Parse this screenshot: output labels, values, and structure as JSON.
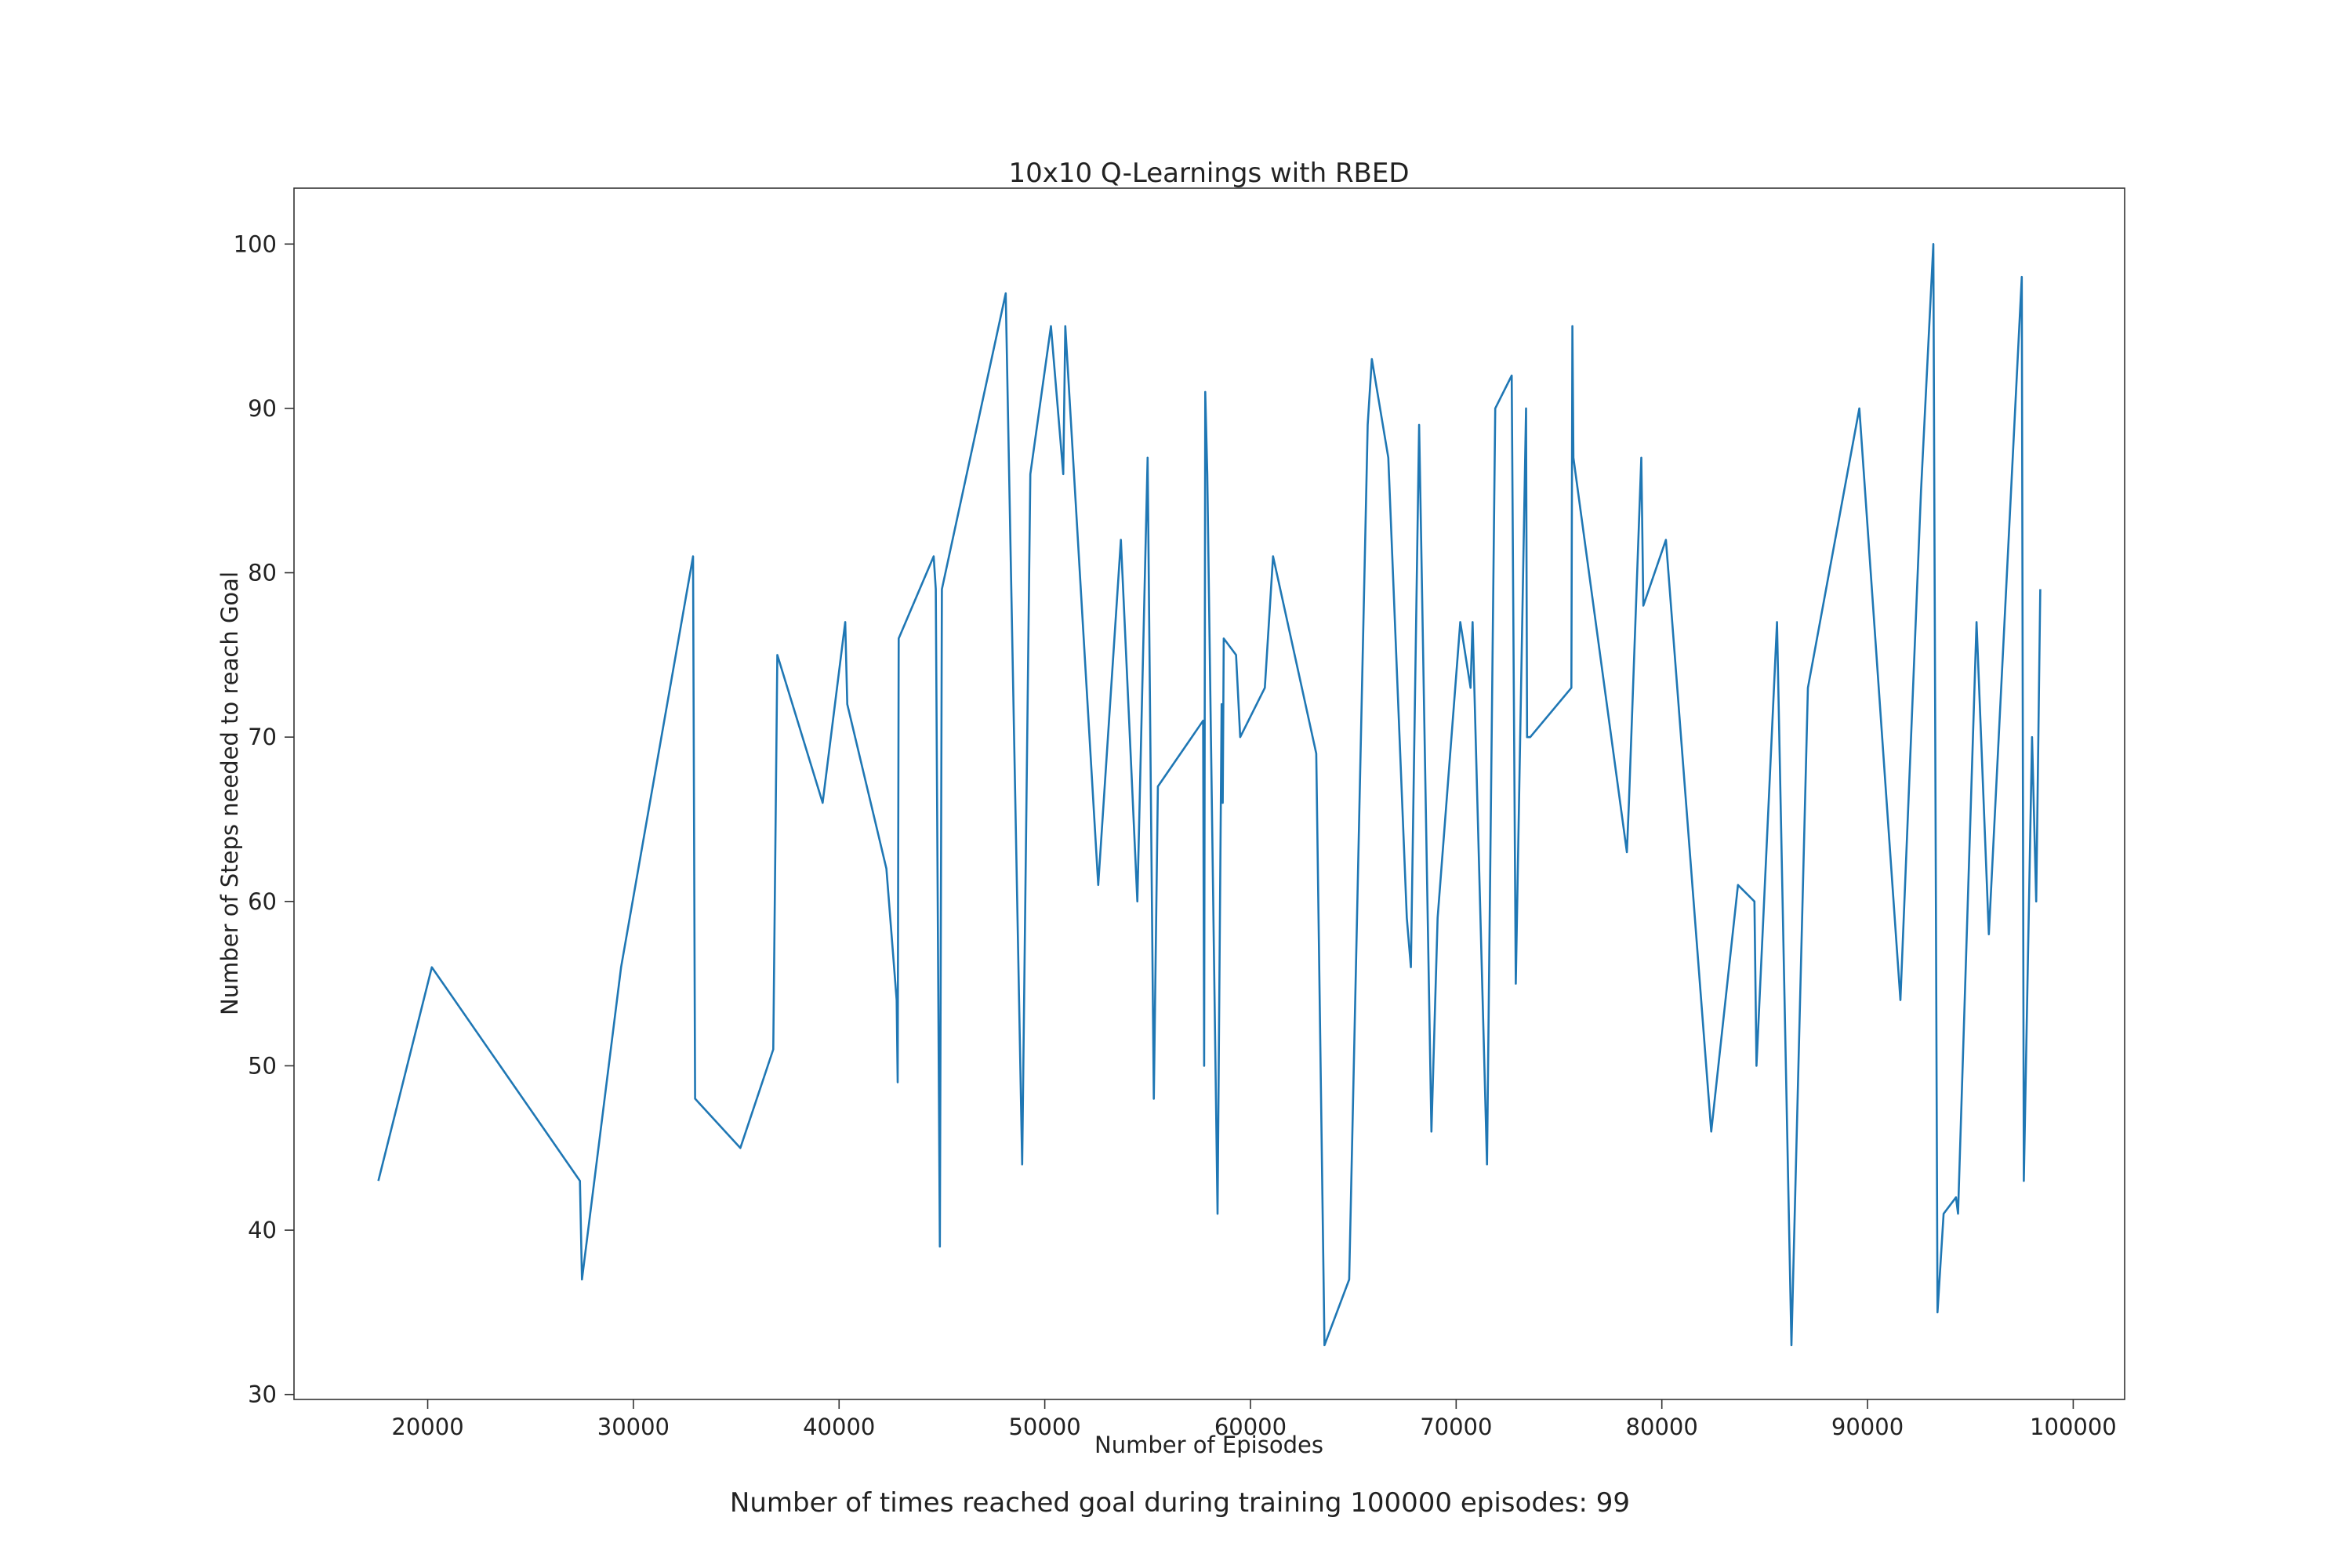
{
  "chart_data": {
    "type": "line",
    "title": "10x10 Q-Learnings with RBED",
    "xlabel": "Number of Episodes",
    "ylabel": "Number of Steps needed to reach Goal",
    "xlim": [
      13500,
      102500
    ],
    "ylim": [
      29.7,
      103.4
    ],
    "xticks": [
      20000,
      30000,
      40000,
      50000,
      60000,
      70000,
      80000,
      90000,
      100000
    ],
    "yticks": [
      30,
      40,
      50,
      60,
      70,
      80,
      90,
      100
    ],
    "grid": false,
    "line_color": "#1f77b4",
    "series": [
      {
        "x": [
          17600,
          20200,
          27400,
          27500,
          29400,
          32900,
          33000,
          35200,
          36800,
          37000,
          39200,
          40300,
          40400,
          42300,
          42800,
          42850,
          42900,
          44600,
          44700,
          44900,
          45000,
          48100,
          48900,
          49300,
          50300,
          50900,
          51000,
          52600,
          53700,
          54500,
          55000,
          55300,
          55500,
          57700,
          57750,
          57800,
          57900,
          58400,
          58600,
          58650,
          58700,
          59300,
          59500,
          60700,
          61100,
          63200,
          63600,
          64800,
          65700,
          65900,
          66700,
          67600,
          67800,
          68200,
          68300,
          68800,
          69100,
          70200,
          70700,
          70800,
          71500,
          71900,
          72700,
          72900,
          73400,
          73450,
          73600,
          75600,
          75650,
          75700,
          78300,
          78400,
          79000,
          79100,
          80200,
          82400,
          83700,
          84500,
          84600,
          85600,
          86300,
          87100,
          89600,
          91600,
          92600,
          93200,
          93400,
          93700,
          94300,
          94400,
          95300,
          95900,
          97500,
          97600,
          98000,
          98200,
          98400
        ],
        "y": [
          43,
          56,
          43,
          37,
          56,
          81,
          48,
          45,
          51,
          75,
          66,
          77,
          72,
          62,
          54,
          49,
          76,
          81,
          79,
          39,
          79,
          97,
          44,
          86,
          95,
          86,
          95,
          61,
          82,
          60,
          87,
          48,
          67,
          71,
          50,
          91,
          86,
          41,
          72,
          66,
          76,
          75,
          70,
          73,
          81,
          69,
          33,
          37,
          89,
          93,
          87,
          59,
          56,
          89,
          82,
          46,
          59,
          77,
          73,
          77,
          44,
          90,
          92,
          55,
          90,
          70,
          70,
          73,
          95,
          87,
          63,
          66,
          87,
          78,
          82,
          46,
          61,
          60,
          50,
          77,
          33,
          73,
          90,
          54,
          85,
          100,
          35,
          41,
          42,
          41,
          77,
          58,
          98,
          43,
          70,
          60,
          79
        ]
      }
    ]
  },
  "caption": "Number of times reached goal during training 100000 episodes: 99"
}
